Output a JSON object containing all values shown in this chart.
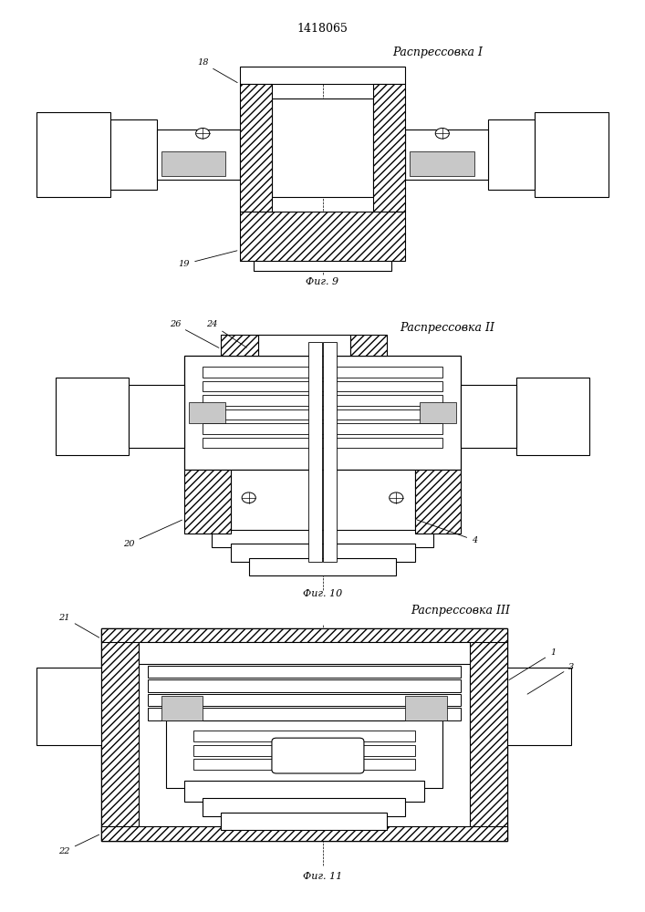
{
  "title": "1418065",
  "fig1_label": "Распрессовка I",
  "fig2_label": "Распрессовка II",
  "fig3_label": "Распрессовка III",
  "fig1_caption": "Фиг. 9",
  "fig2_caption": "Фиг. 10",
  "fig3_caption": "Фиг. 11",
  "bg_color": "#ffffff"
}
